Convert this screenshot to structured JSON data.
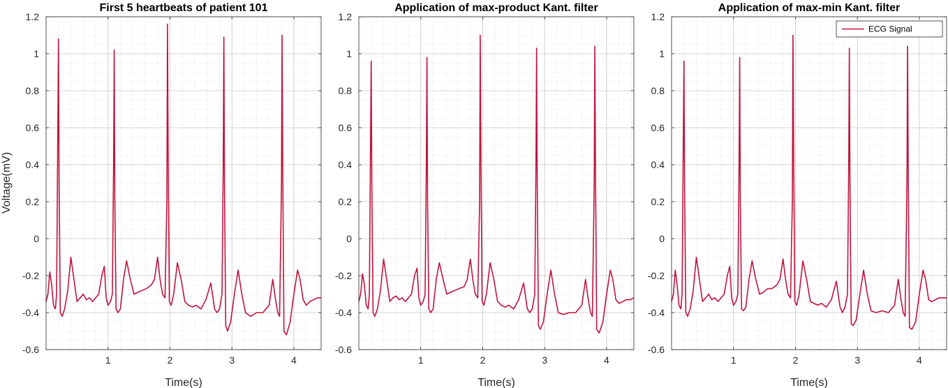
{
  "figure": {
    "ylabel": "Voltage(mV)"
  },
  "legend": {
    "label": "ECG Signal",
    "location": "top-right",
    "panel": 2
  },
  "chart_data": [
    {
      "type": "line",
      "title": "First 5 heartbeats of patient 101",
      "xlabel": "Time(s)",
      "ylabel": "Voltage(mV)",
      "xlim": [
        0,
        4.44
      ],
      "ylim": [
        -0.6,
        1.2
      ],
      "xticks": [
        1,
        2,
        3,
        4
      ],
      "yticks": [
        -0.6,
        -0.4,
        -0.2,
        0,
        0.2,
        0.4,
        0.6,
        0.8,
        1,
        1.2
      ],
      "grid": "major-and-minor",
      "series": [
        {
          "color": "#C0143C",
          "x": [
            0.0,
            0.03,
            0.06,
            0.09,
            0.12,
            0.15,
            0.17,
            0.19,
            0.2,
            0.21,
            0.23,
            0.26,
            0.3,
            0.35,
            0.4,
            0.45,
            0.5,
            0.55,
            0.6,
            0.65,
            0.7,
            0.75,
            0.8,
            0.85,
            0.9,
            0.94,
            0.97,
            1.0,
            1.04,
            1.07,
            1.09,
            1.1,
            1.11,
            1.13,
            1.16,
            1.2,
            1.25,
            1.3,
            1.36,
            1.42,
            1.48,
            1.55,
            1.62,
            1.7,
            1.75,
            1.8,
            1.84,
            1.88,
            1.92,
            1.95,
            1.96,
            1.97,
            1.99,
            2.02,
            2.06,
            2.12,
            2.18,
            2.24,
            2.3,
            2.36,
            2.42,
            2.5,
            2.58,
            2.66,
            2.72,
            2.76,
            2.8,
            2.84,
            2.86,
            2.87,
            2.88,
            2.9,
            2.93,
            2.98,
            3.04,
            3.1,
            3.16,
            3.22,
            3.3,
            3.4,
            3.5,
            3.6,
            3.66,
            3.7,
            3.74,
            3.77,
            3.8,
            3.81,
            3.82,
            3.84,
            3.88,
            3.94,
            4.0,
            4.06,
            4.1,
            4.15,
            4.2,
            4.26,
            4.32,
            4.38,
            4.44
          ],
          "values": [
            -0.34,
            -0.3,
            -0.18,
            -0.25,
            -0.36,
            -0.38,
            -0.3,
            0.6,
            1.08,
            0.3,
            -0.4,
            -0.42,
            -0.38,
            -0.28,
            -0.1,
            -0.22,
            -0.34,
            -0.32,
            -0.3,
            -0.33,
            -0.32,
            -0.34,
            -0.32,
            -0.3,
            -0.2,
            -0.15,
            -0.32,
            -0.36,
            -0.34,
            -0.3,
            0.4,
            1.02,
            0.2,
            -0.38,
            -0.4,
            -0.38,
            -0.22,
            -0.12,
            -0.22,
            -0.3,
            -0.29,
            -0.28,
            -0.27,
            -0.25,
            -0.22,
            -0.1,
            -0.22,
            -0.3,
            -0.32,
            0.2,
            1.16,
            0.5,
            -0.34,
            -0.36,
            -0.3,
            -0.13,
            -0.22,
            -0.34,
            -0.36,
            -0.37,
            -0.36,
            -0.38,
            -0.33,
            -0.24,
            -0.38,
            -0.4,
            -0.38,
            -0.3,
            0.4,
            1.09,
            0.3,
            -0.47,
            -0.5,
            -0.45,
            -0.3,
            -0.17,
            -0.3,
            -0.4,
            -0.42,
            -0.4,
            -0.4,
            -0.36,
            -0.22,
            -0.32,
            -0.4,
            -0.42,
            0.3,
            1.1,
            0.4,
            -0.5,
            -0.52,
            -0.45,
            -0.3,
            -0.17,
            -0.22,
            -0.33,
            -0.36,
            -0.34,
            -0.33,
            -0.32,
            -0.32
          ]
        }
      ]
    },
    {
      "type": "line",
      "title": "Application of max-product Kant. filter",
      "xlabel": "Time(s)",
      "ylabel": "",
      "xlim": [
        0,
        4.44
      ],
      "ylim": [
        -0.6,
        1.2
      ],
      "xticks": [
        1,
        2,
        3,
        4
      ],
      "yticks": [
        -0.6,
        -0.4,
        -0.2,
        0,
        0.2,
        0.4,
        0.6,
        0.8,
        1,
        1.2
      ],
      "grid": "major-and-minor",
      "series": [
        {
          "color": "#C0143C",
          "x": [
            0.0,
            0.03,
            0.06,
            0.09,
            0.12,
            0.15,
            0.17,
            0.19,
            0.2,
            0.21,
            0.23,
            0.26,
            0.3,
            0.35,
            0.4,
            0.45,
            0.5,
            0.55,
            0.6,
            0.65,
            0.7,
            0.75,
            0.8,
            0.85,
            0.9,
            0.94,
            0.97,
            1.0,
            1.04,
            1.07,
            1.09,
            1.1,
            1.11,
            1.13,
            1.16,
            1.2,
            1.25,
            1.3,
            1.36,
            1.42,
            1.48,
            1.55,
            1.62,
            1.7,
            1.75,
            1.8,
            1.84,
            1.88,
            1.92,
            1.95,
            1.96,
            1.97,
            1.99,
            2.02,
            2.06,
            2.12,
            2.18,
            2.24,
            2.3,
            2.36,
            2.42,
            2.5,
            2.58,
            2.66,
            2.72,
            2.76,
            2.8,
            2.84,
            2.86,
            2.87,
            2.88,
            2.9,
            2.93,
            2.98,
            3.04,
            3.1,
            3.16,
            3.22,
            3.3,
            3.4,
            3.5,
            3.6,
            3.66,
            3.7,
            3.74,
            3.77,
            3.8,
            3.81,
            3.82,
            3.84,
            3.88,
            3.94,
            4.0,
            4.06,
            4.1,
            4.15,
            4.2,
            4.26,
            4.32,
            4.38,
            4.44
          ],
          "values": [
            -0.34,
            -0.3,
            -0.19,
            -0.25,
            -0.36,
            -0.38,
            -0.3,
            0.55,
            0.96,
            0.3,
            -0.4,
            -0.42,
            -0.38,
            -0.28,
            -0.11,
            -0.22,
            -0.34,
            -0.32,
            -0.31,
            -0.33,
            -0.32,
            -0.34,
            -0.32,
            -0.3,
            -0.2,
            -0.16,
            -0.32,
            -0.36,
            -0.34,
            -0.3,
            0.4,
            0.98,
            0.2,
            -0.38,
            -0.4,
            -0.38,
            -0.22,
            -0.13,
            -0.22,
            -0.3,
            -0.29,
            -0.28,
            -0.27,
            -0.26,
            -0.22,
            -0.11,
            -0.22,
            -0.3,
            -0.32,
            0.2,
            1.1,
            0.5,
            -0.34,
            -0.36,
            -0.3,
            -0.13,
            -0.22,
            -0.34,
            -0.36,
            -0.37,
            -0.36,
            -0.38,
            -0.33,
            -0.24,
            -0.38,
            -0.4,
            -0.38,
            -0.3,
            0.4,
            1.03,
            0.3,
            -0.47,
            -0.49,
            -0.45,
            -0.3,
            -0.17,
            -0.3,
            -0.4,
            -0.41,
            -0.4,
            -0.4,
            -0.36,
            -0.22,
            -0.32,
            -0.4,
            -0.42,
            0.3,
            1.04,
            0.4,
            -0.49,
            -0.51,
            -0.45,
            -0.3,
            -0.17,
            -0.22,
            -0.33,
            -0.35,
            -0.34,
            -0.33,
            -0.33,
            -0.32
          ]
        }
      ]
    },
    {
      "type": "line",
      "title": "Application of max-min Kant. filter",
      "xlabel": "Time(s)",
      "ylabel": "",
      "xlim": [
        0,
        4.44
      ],
      "ylim": [
        -0.6,
        1.2
      ],
      "xticks": [
        1,
        2,
        3,
        4
      ],
      "yticks": [
        -0.6,
        -0.4,
        -0.2,
        0,
        0.2,
        0.4,
        0.6,
        0.8,
        1,
        1.2
      ],
      "grid": "major-and-minor",
      "series": [
        {
          "name": "ECG Signal",
          "color": "#C0143C",
          "x": [
            0.0,
            0.03,
            0.06,
            0.09,
            0.12,
            0.15,
            0.17,
            0.19,
            0.2,
            0.21,
            0.23,
            0.26,
            0.3,
            0.35,
            0.4,
            0.45,
            0.5,
            0.55,
            0.6,
            0.65,
            0.7,
            0.75,
            0.8,
            0.85,
            0.9,
            0.94,
            0.97,
            1.0,
            1.04,
            1.07,
            1.09,
            1.1,
            1.11,
            1.13,
            1.16,
            1.2,
            1.25,
            1.3,
            1.36,
            1.42,
            1.48,
            1.55,
            1.62,
            1.7,
            1.75,
            1.8,
            1.84,
            1.88,
            1.92,
            1.95,
            1.96,
            1.97,
            1.99,
            2.02,
            2.06,
            2.12,
            2.18,
            2.24,
            2.3,
            2.36,
            2.42,
            2.5,
            2.58,
            2.66,
            2.72,
            2.76,
            2.8,
            2.84,
            2.86,
            2.87,
            2.88,
            2.9,
            2.93,
            2.98,
            3.04,
            3.1,
            3.16,
            3.22,
            3.3,
            3.4,
            3.5,
            3.6,
            3.66,
            3.7,
            3.74,
            3.77,
            3.8,
            3.81,
            3.82,
            3.84,
            3.88,
            3.94,
            4.0,
            4.06,
            4.1,
            4.15,
            4.2,
            4.26,
            4.32,
            4.38,
            4.44
          ],
          "values": [
            -0.34,
            -0.3,
            -0.17,
            -0.25,
            -0.36,
            -0.38,
            -0.3,
            0.55,
            0.96,
            0.3,
            -0.4,
            -0.42,
            -0.38,
            -0.28,
            -0.1,
            -0.22,
            -0.34,
            -0.32,
            -0.3,
            -0.33,
            -0.32,
            -0.34,
            -0.32,
            -0.3,
            -0.2,
            -0.15,
            -0.32,
            -0.36,
            -0.34,
            -0.3,
            0.4,
            0.98,
            0.2,
            -0.38,
            -0.39,
            -0.37,
            -0.22,
            -0.12,
            -0.22,
            -0.3,
            -0.29,
            -0.27,
            -0.27,
            -0.25,
            -0.22,
            -0.11,
            -0.22,
            -0.3,
            -0.32,
            0.2,
            1.1,
            0.5,
            -0.34,
            -0.36,
            -0.3,
            -0.12,
            -0.22,
            -0.34,
            -0.35,
            -0.36,
            -0.35,
            -0.37,
            -0.33,
            -0.23,
            -0.37,
            -0.4,
            -0.37,
            -0.3,
            0.4,
            1.03,
            0.3,
            -0.46,
            -0.47,
            -0.44,
            -0.3,
            -0.17,
            -0.3,
            -0.39,
            -0.4,
            -0.39,
            -0.4,
            -0.36,
            -0.22,
            -0.32,
            -0.4,
            -0.42,
            0.3,
            1.04,
            0.4,
            -0.48,
            -0.49,
            -0.45,
            -0.3,
            -0.17,
            -0.22,
            -0.33,
            -0.34,
            -0.33,
            -0.32,
            -0.32,
            -0.32
          ]
        }
      ]
    }
  ]
}
